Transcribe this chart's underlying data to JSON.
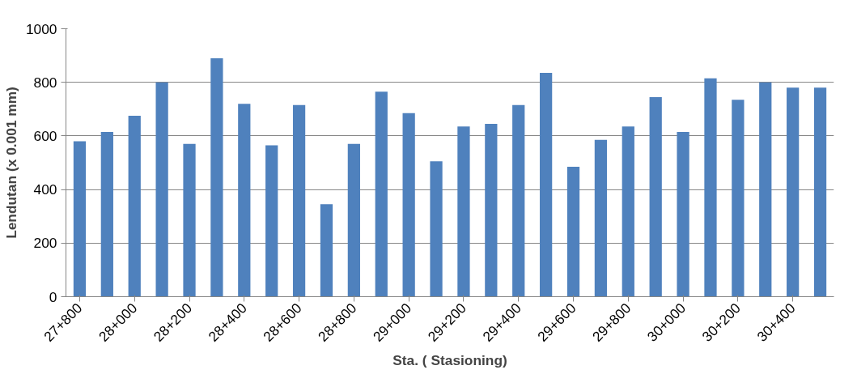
{
  "chart_data": {
    "type": "bar",
    "xlabel": "Sta. ( Stasioning)",
    "ylabel": "Lendutan (x 0.001 mm)",
    "categories": [
      "27+800",
      null,
      "28+000",
      null,
      "28+200",
      null,
      "28+400",
      null,
      "28+600",
      null,
      "28+800",
      null,
      "29+000",
      null,
      "29+200",
      null,
      "29+400",
      null,
      "29+600",
      null,
      "29+800",
      null,
      "30+000",
      null,
      "30+200",
      null,
      "30+400",
      null
    ],
    "values": [
      580,
      615,
      675,
      800,
      570,
      890,
      720,
      565,
      715,
      345,
      570,
      765,
      685,
      505,
      635,
      645,
      715,
      835,
      485,
      585,
      635,
      745,
      615,
      815,
      735,
      800,
      780,
      780
    ],
    "color": "#4f81bd",
    "ylim": [
      0,
      1000
    ],
    "yticks": [
      0,
      200,
      400,
      600,
      800,
      1000
    ],
    "grid": "y"
  }
}
